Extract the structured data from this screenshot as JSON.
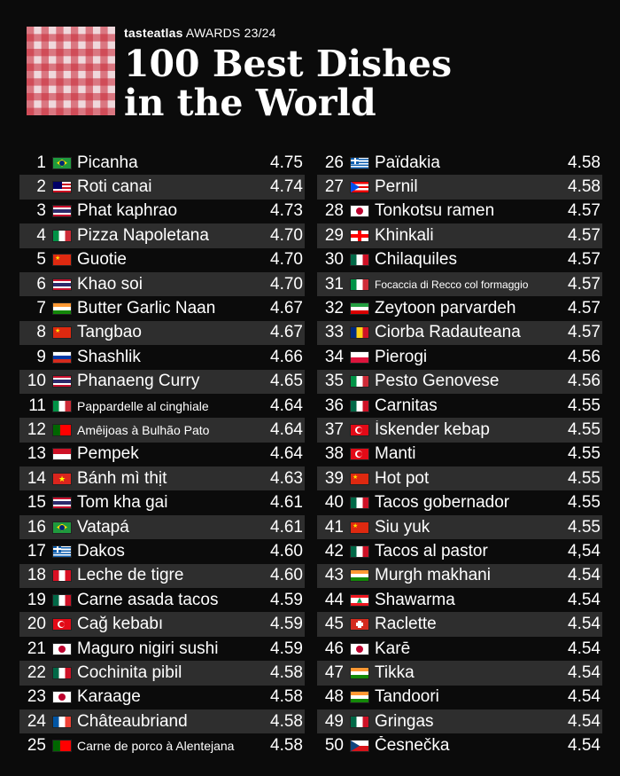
{
  "header": {
    "brand": "tasteatlas",
    "awards": "AWARDS 23/24",
    "title_line1": "100 Best Dishes",
    "title_line2": "in the World"
  },
  "left": [
    {
      "rank": "1",
      "name": "Picanha",
      "score": "4.75",
      "flag": "brazil"
    },
    {
      "rank": "2",
      "name": "Roti canai",
      "score": "4.74",
      "flag": "malaysia"
    },
    {
      "rank": "3",
      "name": "Phat kaphrao",
      "score": "4.73",
      "flag": "thailand"
    },
    {
      "rank": "4",
      "name": "Pizza Napoletana",
      "score": "4.70",
      "flag": "italy"
    },
    {
      "rank": "5",
      "name": "Guotie",
      "score": "4.70",
      "flag": "china"
    },
    {
      "rank": "6",
      "name": "Khao soi",
      "score": "4.70",
      "flag": "thailand"
    },
    {
      "rank": "7",
      "name": "Butter Garlic Naan",
      "score": "4.67",
      "flag": "india"
    },
    {
      "rank": "8",
      "name": "Tangbao",
      "score": "4.67",
      "flag": "china"
    },
    {
      "rank": "9",
      "name": "Shashlik",
      "score": "4.66",
      "flag": "russia"
    },
    {
      "rank": "10",
      "name": "Phanaeng Curry",
      "score": "4.65",
      "flag": "thailand"
    },
    {
      "rank": "11",
      "name": "Pappardelle al cinghiale",
      "score": "4.64",
      "flag": "italy"
    },
    {
      "rank": "12",
      "name": "Amêijoas à Bulhão Pato",
      "score": "4.64",
      "flag": "portugal"
    },
    {
      "rank": "13",
      "name": "Pempek",
      "score": "4.64",
      "flag": "indonesia"
    },
    {
      "rank": "14",
      "name": "Bánh mì thịt",
      "score": "4.63",
      "flag": "vietnam"
    },
    {
      "rank": "15",
      "name": "Tom kha gai",
      "score": "4.61",
      "flag": "thailand"
    },
    {
      "rank": "16",
      "name": "Vatapá",
      "score": "4.61",
      "flag": "brazil"
    },
    {
      "rank": "17",
      "name": "Dakos",
      "score": "4.60",
      "flag": "greece"
    },
    {
      "rank": "18",
      "name": "Leche de tigre",
      "score": "4.60",
      "flag": "peru"
    },
    {
      "rank": "19",
      "name": "Carne asada tacos",
      "score": "4.59",
      "flag": "mexico"
    },
    {
      "rank": "20",
      "name": "Cağ kebabı",
      "score": "4.59",
      "flag": "turkey"
    },
    {
      "rank": "21",
      "name": "Maguro nigiri sushi",
      "score": "4.59",
      "flag": "japan"
    },
    {
      "rank": "22",
      "name": "Cochinita pibil",
      "score": "4.58",
      "flag": "mexico"
    },
    {
      "rank": "23",
      "name": "Karaage",
      "score": "4.58",
      "flag": "japan"
    },
    {
      "rank": "24",
      "name": "Châteaubriand",
      "score": "4.58",
      "flag": "france"
    },
    {
      "rank": "25",
      "name": "Carne de porco à Alentejana",
      "score": "4.58",
      "flag": "portugal"
    }
  ],
  "right": [
    {
      "rank": "26",
      "name": "Païdakia",
      "score": "4.58",
      "flag": "greece"
    },
    {
      "rank": "27",
      "name": "Pernil",
      "score": "4.58",
      "flag": "puertorico"
    },
    {
      "rank": "28",
      "name": "Tonkotsu ramen",
      "score": "4.57",
      "flag": "japan"
    },
    {
      "rank": "29",
      "name": "Khinkali",
      "score": "4.57",
      "flag": "georgia"
    },
    {
      "rank": "30",
      "name": "Chilaquiles",
      "score": "4.57",
      "flag": "mexico"
    },
    {
      "rank": "31",
      "name": "Focaccia di Recco col formaggio",
      "score": "4.57",
      "flag": "italy"
    },
    {
      "rank": "32",
      "name": "Zeytoon parvardeh",
      "score": "4.57",
      "flag": "iran"
    },
    {
      "rank": "33",
      "name": "Ciorba Radauteana",
      "score": "4.57",
      "flag": "romania"
    },
    {
      "rank": "34",
      "name": "Pierogi",
      "score": "4.56",
      "flag": "poland"
    },
    {
      "rank": "35",
      "name": "Pesto Genovese",
      "score": "4.56",
      "flag": "italy"
    },
    {
      "rank": "36",
      "name": "Carnitas",
      "score": "4.55",
      "flag": "mexico"
    },
    {
      "rank": "37",
      "name": "İskender kebap",
      "score": "4.55",
      "flag": "turkey"
    },
    {
      "rank": "38",
      "name": "Manti",
      "score": "4.55",
      "flag": "turkey"
    },
    {
      "rank": "39",
      "name": "Hot pot",
      "score": "4.55",
      "flag": "china"
    },
    {
      "rank": "40",
      "name": "Tacos gobernador",
      "score": "4.55",
      "flag": "mexico"
    },
    {
      "rank": "41",
      "name": "Siu yuk",
      "score": "4.55",
      "flag": "china"
    },
    {
      "rank": "42",
      "name": "Tacos al pastor",
      "score": "4,54",
      "flag": "mexico"
    },
    {
      "rank": "43",
      "name": "Murgh makhani",
      "score": "4.54",
      "flag": "india"
    },
    {
      "rank": "44",
      "name": "Shawarma",
      "score": "4.54",
      "flag": "lebanon"
    },
    {
      "rank": "45",
      "name": "Raclette",
      "score": "4.54",
      "flag": "switzerland"
    },
    {
      "rank": "46",
      "name": "Karē",
      "score": "4.54",
      "flag": "japan"
    },
    {
      "rank": "47",
      "name": "Tikka",
      "score": "4.54",
      "flag": "india"
    },
    {
      "rank": "48",
      "name": "Tandoori",
      "score": "4.54",
      "flag": "india"
    },
    {
      "rank": "49",
      "name": "Gringas",
      "score": "4.54",
      "flag": "mexico"
    },
    {
      "rank": "50",
      "name": "Česnečka",
      "score": "4.54",
      "flag": "czech"
    }
  ]
}
